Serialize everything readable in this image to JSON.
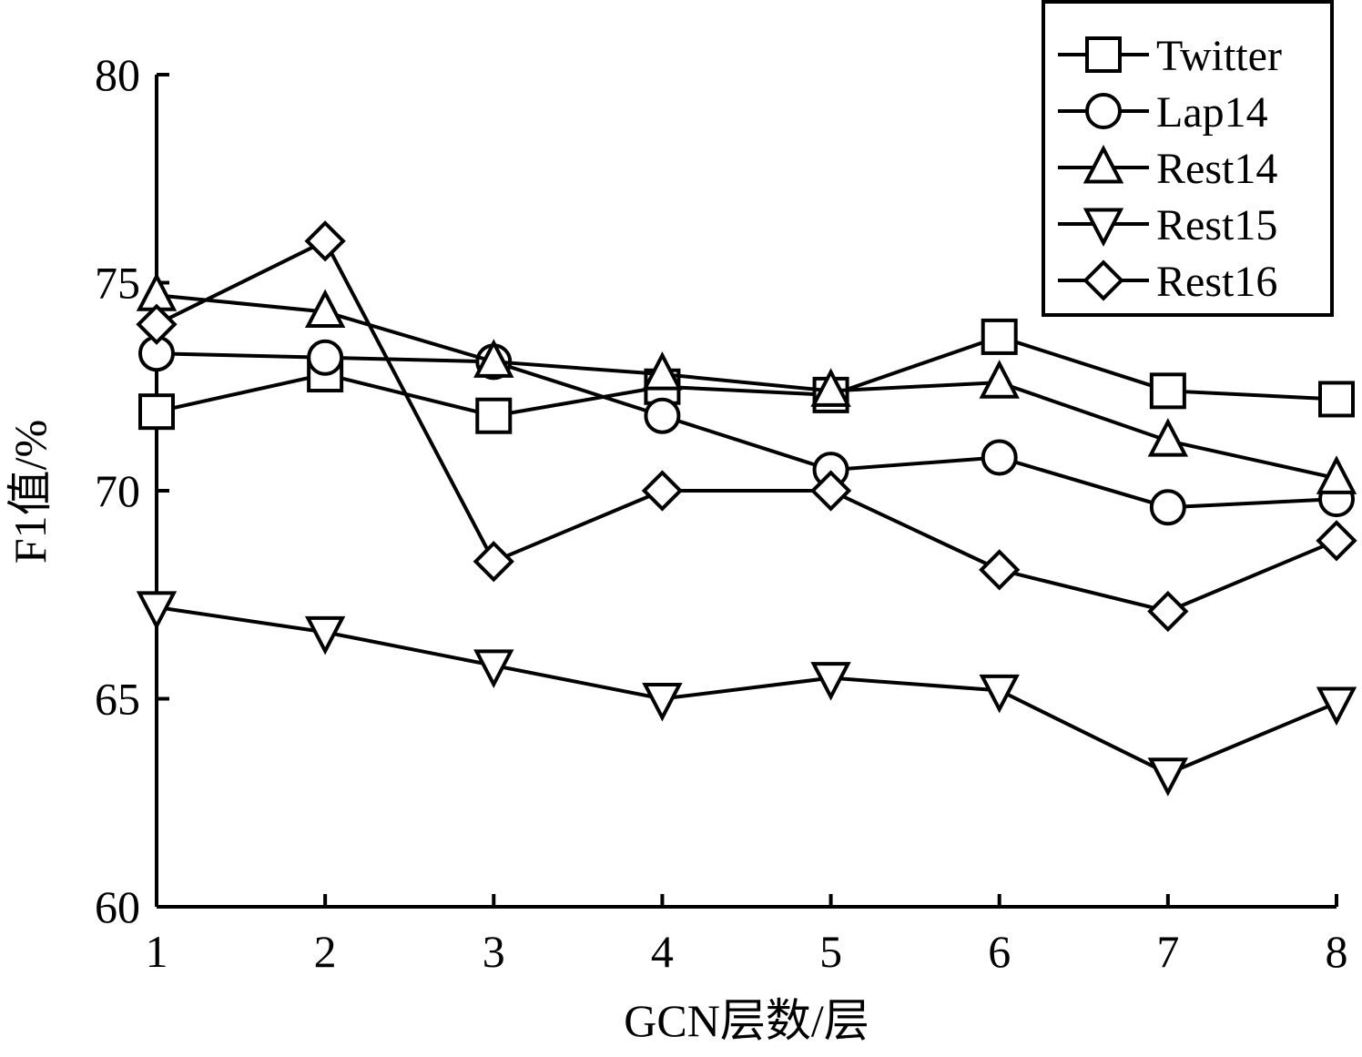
{
  "chart_data": {
    "type": "line",
    "title": "",
    "xlabel": "GCN层数/层",
    "ylabel": "F1值/%",
    "x": [
      1,
      2,
      3,
      4,
      5,
      6,
      7,
      8
    ],
    "xlim": [
      1,
      8
    ],
    "ylim": [
      60,
      80
    ],
    "yticks": [
      60,
      65,
      70,
      75,
      80
    ],
    "xticks": [
      1,
      2,
      3,
      4,
      5,
      6,
      7,
      8
    ],
    "grid": false,
    "legend_position": "top-right",
    "series": [
      {
        "name": "Twitter",
        "marker": "square",
        "values": [
          71.9,
          72.8,
          71.8,
          72.5,
          72.3,
          73.7,
          72.4,
          72.2
        ]
      },
      {
        "name": "Lap14",
        "marker": "circle",
        "values": [
          73.3,
          73.2,
          73.1,
          71.8,
          70.5,
          70.8,
          69.6,
          69.8
        ]
      },
      {
        "name": "Rest14",
        "marker": "triangle-up",
        "values": [
          74.7,
          74.3,
          73.1,
          72.8,
          72.4,
          72.6,
          71.2,
          70.3
        ]
      },
      {
        "name": "Rest15",
        "marker": "triangle-down",
        "values": [
          67.2,
          66.6,
          65.8,
          65.0,
          65.5,
          65.2,
          63.2,
          64.9
        ]
      },
      {
        "name": "Rest16",
        "marker": "diamond",
        "values": [
          74.0,
          76.0,
          68.3,
          70.0,
          70.0,
          68.1,
          67.1,
          68.8
        ]
      }
    ]
  }
}
